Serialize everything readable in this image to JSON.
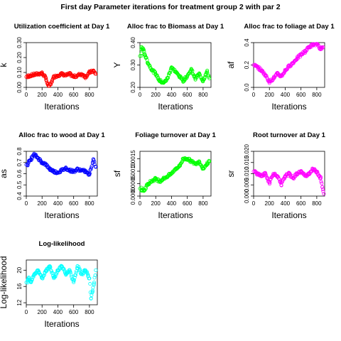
{
  "figure": {
    "title": "First day Parameter iterations for treatment group 2 with par 2"
  },
  "chart_data": [
    {
      "type": "scatter",
      "id": "k",
      "title": "Utilization coefficient at Day 1",
      "xlabel": "Iterations",
      "ylabel": "k",
      "color": "#ff0000",
      "xlim": [
        0,
        900
      ],
      "ylim": [
        0,
        0.3
      ],
      "xticks": [
        0,
        200,
        400,
        600,
        800
      ],
      "yticks": [
        0.0,
        0.1,
        0.2,
        0.3
      ],
      "yticklabels": [
        "0.00",
        "0.10",
        "0.20",
        "0.30"
      ],
      "x": [
        0,
        50,
        100,
        150,
        200,
        250,
        270,
        290,
        310,
        330,
        350,
        400,
        450,
        500,
        550,
        600,
        650,
        700,
        750,
        800,
        850,
        880
      ],
      "y": [
        0.07,
        0.08,
        0.085,
        0.09,
        0.095,
        0.06,
        0.02,
        0.01,
        0.02,
        0.05,
        0.07,
        0.08,
        0.09,
        0.08,
        0.09,
        0.07,
        0.08,
        0.09,
        0.07,
        0.1,
        0.11,
        0.09
      ]
    },
    {
      "type": "scatter",
      "id": "Y",
      "title": "Alloc frac to Biomass at Day 1",
      "xlabel": "Iterations",
      "ylabel": "Y",
      "color": "#00ff00",
      "xlim": [
        0,
        900
      ],
      "ylim": [
        0.2,
        0.4
      ],
      "xticks": [
        0,
        200,
        400,
        600,
        800
      ],
      "yticks": [
        0.2,
        0.3,
        0.4
      ],
      "yticklabels": [
        "0.20",
        "0.30",
        "0.40"
      ],
      "x": [
        0,
        20,
        40,
        60,
        100,
        150,
        200,
        250,
        300,
        350,
        400,
        450,
        500,
        550,
        600,
        650,
        700,
        750,
        800,
        850,
        880
      ],
      "y": [
        0.34,
        0.38,
        0.37,
        0.35,
        0.31,
        0.28,
        0.26,
        0.23,
        0.22,
        0.24,
        0.29,
        0.27,
        0.25,
        0.23,
        0.25,
        0.28,
        0.24,
        0.26,
        0.23,
        0.27,
        0.24
      ]
    },
    {
      "type": "scatter",
      "id": "af",
      "title": "Alloc frac to foliage at Day 1",
      "xlabel": "Iterations",
      "ylabel": "af",
      "color": "#ff00ff",
      "xlim": [
        0,
        900
      ],
      "ylim": [
        0,
        0.4
      ],
      "xticks": [
        0,
        200,
        400,
        600,
        800
      ],
      "yticks": [
        0.0,
        0.2,
        0.4
      ],
      "yticklabels": [
        "0.0",
        "0.2",
        "0.4"
      ],
      "x": [
        0,
        50,
        100,
        150,
        200,
        250,
        300,
        350,
        400,
        450,
        500,
        550,
        600,
        650,
        700,
        750,
        800,
        850,
        880
      ],
      "y": [
        0.2,
        0.18,
        0.15,
        0.11,
        0.05,
        0.08,
        0.12,
        0.1,
        0.15,
        0.19,
        0.22,
        0.26,
        0.29,
        0.32,
        0.36,
        0.38,
        0.39,
        0.34,
        0.36
      ]
    },
    {
      "type": "scatter",
      "id": "as",
      "title": "Alloc frac to wood at Day 1",
      "xlabel": "Iterations",
      "ylabel": "as",
      "color": "#0000ff",
      "xlim": [
        0,
        900
      ],
      "ylim": [
        0.4,
        0.8
      ],
      "xticks": [
        0,
        200,
        400,
        600,
        800
      ],
      "yticks": [
        0.4,
        0.5,
        0.6,
        0.7,
        0.8
      ],
      "yticklabels": [
        "0.4",
        "0.5",
        "0.6",
        "0.7",
        "0.8"
      ],
      "x": [
        0,
        50,
        100,
        150,
        200,
        250,
        300,
        350,
        400,
        450,
        500,
        550,
        600,
        650,
        700,
        750,
        800,
        850,
        880
      ],
      "y": [
        0.68,
        0.72,
        0.77,
        0.74,
        0.7,
        0.68,
        0.64,
        0.62,
        0.61,
        0.63,
        0.65,
        0.63,
        0.62,
        0.64,
        0.63,
        0.62,
        0.59,
        0.73,
        0.66
      ]
    },
    {
      "type": "scatter",
      "id": "sf",
      "title": "Foliage turnover at Day 1",
      "xlabel": "Iterations",
      "ylabel": "sf",
      "color": "#00ff00",
      "xlim": [
        0,
        900
      ],
      "ylim": [
        0,
        0.0018
      ],
      "xticks": [
        0,
        200,
        400,
        600,
        800
      ],
      "yticks": [
        0.0,
        0.0005,
        0.001,
        0.0015
      ],
      "yticklabels": [
        "0.0000",
        "0.0005",
        "0.0010",
        "0.0015"
      ],
      "x": [
        0,
        50,
        100,
        150,
        200,
        250,
        300,
        350,
        400,
        450,
        500,
        550,
        600,
        650,
        700,
        750,
        800,
        850,
        880
      ],
      "y": [
        0.0003,
        0.0002,
        0.0005,
        0.0006,
        0.0007,
        0.0006,
        0.0007,
        0.0008,
        0.0009,
        0.0011,
        0.0012,
        0.0015,
        0.0015,
        0.0014,
        0.0013,
        0.0014,
        0.0011,
        0.0013,
        0.0014
      ]
    },
    {
      "type": "scatter",
      "id": "sr",
      "title": "Root turnover at Day 1",
      "xlabel": "Iterations",
      "ylabel": "sr",
      "color": "#ff00ff",
      "xlim": [
        0,
        900
      ],
      "ylim": [
        0,
        0.02
      ],
      "xticks": [
        0,
        200,
        400,
        600,
        800
      ],
      "yticks": [
        0.0,
        0.005,
        0.01,
        0.015,
        0.02
      ],
      "yticklabels": [
        "0.000",
        "0.005",
        "0.010",
        "0.015",
        "0.020"
      ],
      "x": [
        0,
        50,
        100,
        150,
        200,
        250,
        300,
        350,
        400,
        450,
        500,
        550,
        600,
        650,
        700,
        750,
        800,
        850,
        870,
        890
      ],
      "y": [
        0.011,
        0.01,
        0.009,
        0.01,
        0.006,
        0.01,
        0.009,
        0.005,
        0.009,
        0.01,
        0.008,
        0.01,
        0.011,
        0.009,
        0.01,
        0.012,
        0.011,
        0.008,
        0.004,
        0.001
      ]
    },
    {
      "type": "scatter",
      "id": "ll",
      "title": "Log-likelihood",
      "xlabel": "Iterations",
      "ylabel": "Log-likelihood",
      "color": "#00ffff",
      "xlim": [
        0,
        900
      ],
      "ylim": [
        11.5,
        22.5
      ],
      "xticks": [
        0,
        200,
        400,
        600,
        800
      ],
      "yticks": [
        12,
        16,
        20
      ],
      "yticklabels": [
        "12",
        "16",
        "20"
      ],
      "x": [
        0,
        30,
        60,
        100,
        150,
        200,
        250,
        300,
        350,
        400,
        450,
        500,
        550,
        600,
        650,
        700,
        750,
        800,
        820,
        840,
        860,
        880
      ],
      "y": [
        17,
        18,
        17,
        19,
        20,
        18,
        20,
        21,
        18,
        20,
        21,
        19,
        20,
        17,
        21,
        19,
        20,
        18,
        13,
        15,
        17,
        20
      ]
    }
  ]
}
